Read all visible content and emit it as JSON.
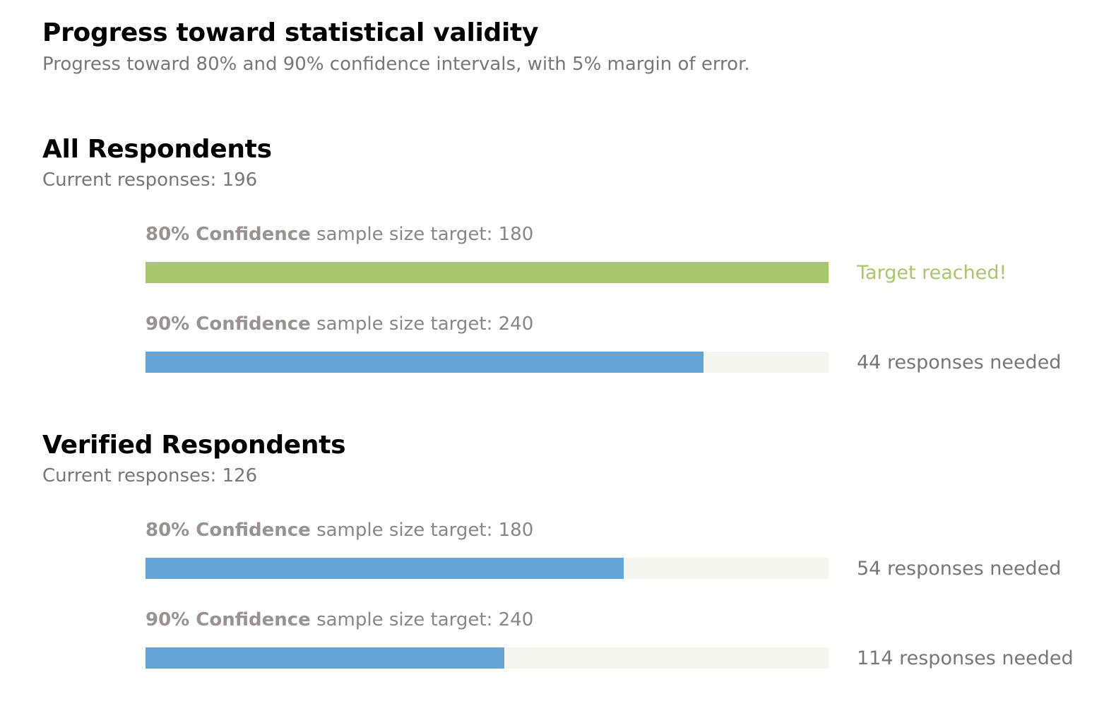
{
  "header": {
    "title": "Progress toward statistical validity",
    "subtitle": "Progress toward 80% and 90% confidence intervals, with 5% margin of error."
  },
  "colors": {
    "reached": "#a8c66c",
    "progress": "#65a4d4",
    "track": "#f6f6f1",
    "status_text": "#777777"
  },
  "groups": [
    {
      "title": "All Respondents",
      "current": "Current responses: 196",
      "targets": [
        {
          "confidence": "80% Confidence",
          "label": "sample size target: 180",
          "progress": 1.0,
          "reached": true,
          "status": "Target reached!"
        },
        {
          "confidence": "90% Confidence",
          "label": "sample size target: 240",
          "progress": 0.8167,
          "reached": false,
          "status": "44 responses needed"
        }
      ]
    },
    {
      "title": "Verified Respondents",
      "current": "Current responses: 126",
      "targets": [
        {
          "confidence": "80% Confidence",
          "label": "sample size target: 180",
          "progress": 0.7,
          "reached": false,
          "status": "54 responses needed"
        },
        {
          "confidence": "90% Confidence",
          "label": "sample size target: 240",
          "progress": 0.525,
          "reached": false,
          "status": "114 responses needed"
        }
      ]
    }
  ]
}
